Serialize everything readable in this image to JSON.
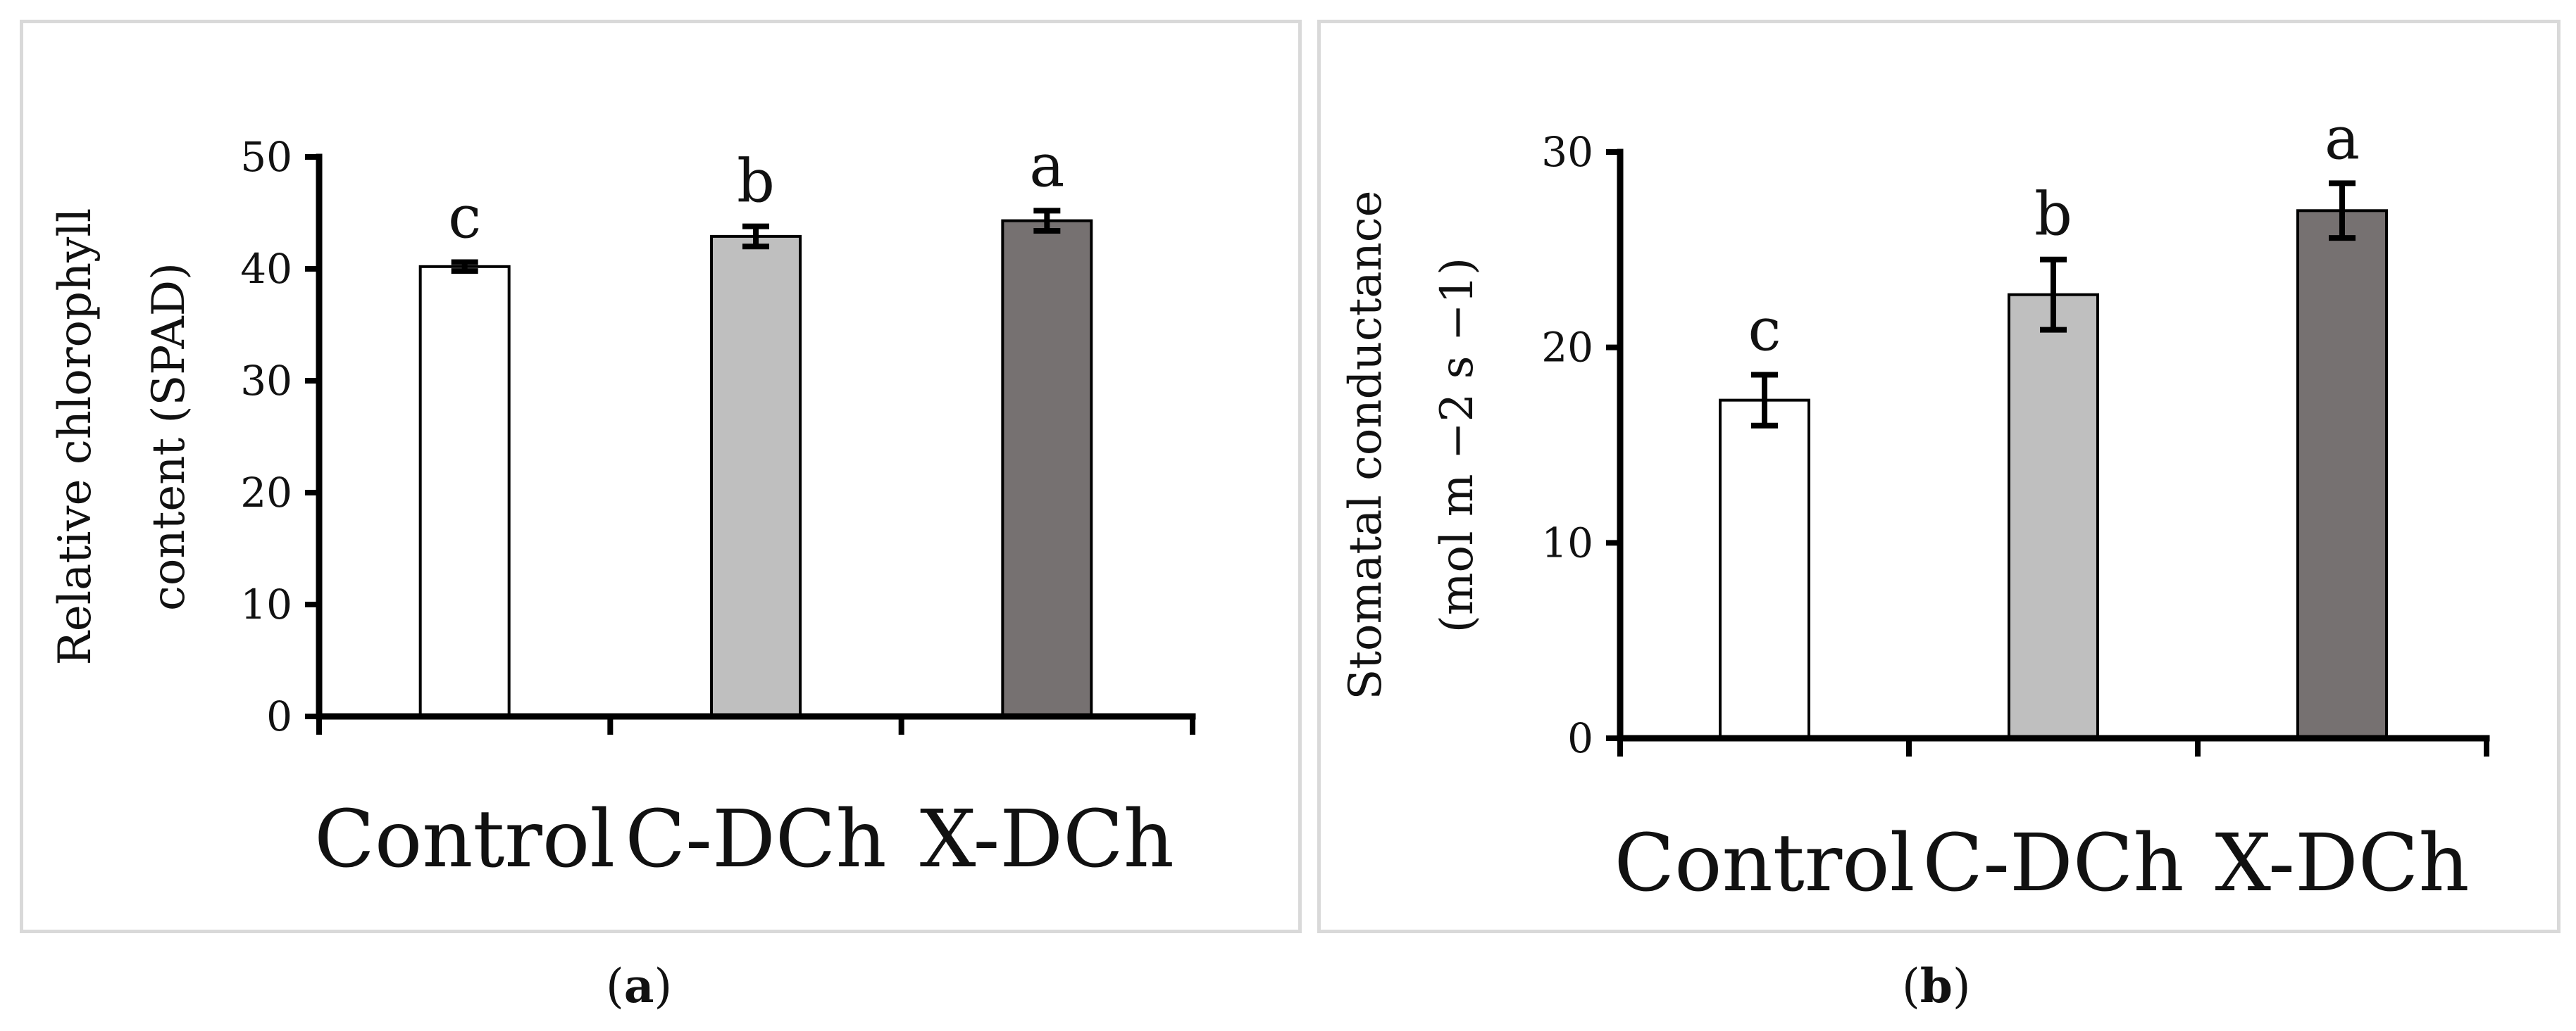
{
  "chart_data": [
    {
      "type": "bar",
      "panel_label": "a",
      "categories": [
        "Control",
        "C-DCh",
        "X-DCh"
      ],
      "values": [
        40.2,
        42.9,
        44.3
      ],
      "errors": [
        0.4,
        0.9,
        0.9
      ],
      "significance": [
        "c",
        "b",
        "a"
      ],
      "colors": [
        "#ffffff",
        "#bfbfbf",
        "#767171"
      ],
      "title": "",
      "xlabel": "",
      "ylabel_lines": [
        "Relative chlorophyll",
        "content (SPAD)"
      ],
      "ylim": [
        0,
        50
      ],
      "yticks": [
        0,
        10,
        20,
        30,
        40,
        50
      ],
      "grid": false
    },
    {
      "type": "bar",
      "panel_label": "b",
      "categories": [
        "Control",
        "C-DCh",
        "X-DCh"
      ],
      "values": [
        17.3,
        22.7,
        27.0
      ],
      "errors": [
        1.3,
        1.8,
        1.4
      ],
      "significance": [
        "c",
        "b",
        "a"
      ],
      "colors": [
        "#ffffff",
        "#bfbfbf",
        "#767171"
      ],
      "title": "",
      "xlabel": "",
      "ylabel_lines": [
        "Stomatal conductance",
        "(mol m −2 s −1)"
      ],
      "ylim": [
        0,
        30
      ],
      "yticks": [
        0,
        10,
        20,
        30
      ],
      "grid": false
    }
  ],
  "captions": {
    "a": "a",
    "b": "b"
  }
}
